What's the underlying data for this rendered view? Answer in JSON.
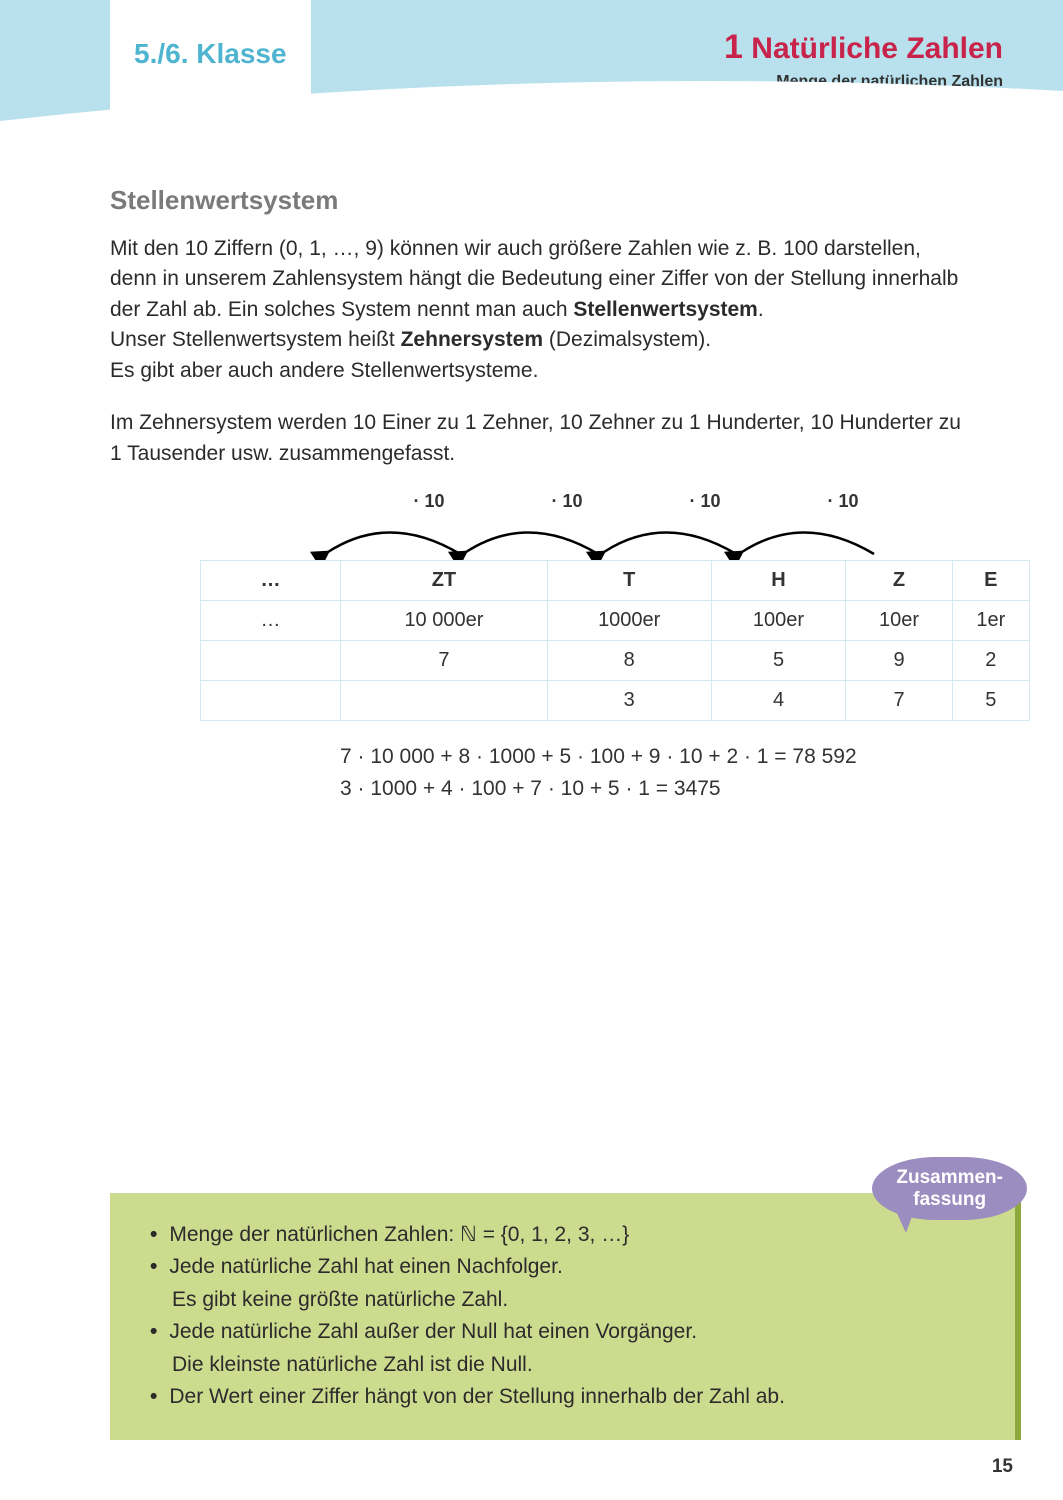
{
  "header": {
    "grade": "5./6. Klasse",
    "chapter_num": "1",
    "chapter_title": "Natürliche Zahlen",
    "chapter_sub": "Menge der natürlichen Zahlen",
    "bg_color": "#b9e1ed",
    "accent_color": "#c8234a",
    "grade_color": "#4fb4d0"
  },
  "section_title": "Stellenwertsystem",
  "intro_html": "Mit den 10 Ziffern (0, 1, …, 9) können wir auch größere Zahlen wie z. B. 100 darstellen, denn in unserem Zahlensystem hängt die Bedeutung einer Ziffer von der Stellung innerhalb der Zahl ab. Ein solches System nennt man auch <b>Stellenwertsystem</b>.<br>Unser Stellenwertsystem heißt <b>Zehnersystem</b> (Dezimalsystem).<br>Es gibt aber auch andere Stellenwertsysteme.",
  "para2": "Im Zehnersystem werden 10 Einer zu 1 Zehner, 10 Zehner zu 1 Hunderter, 10 Hunderter zu 1 Tausender usw. zusammengefasst.",
  "arrow_label": "· 10",
  "table": {
    "dots": "…",
    "headers": [
      "ZT",
      "T",
      "H",
      "Z",
      "E"
    ],
    "row1": [
      "10 000er",
      "1000er",
      "100er",
      "10er",
      "1er"
    ],
    "row2": [
      "7",
      "8",
      "5",
      "9",
      "2"
    ],
    "row3": [
      "",
      "3",
      "4",
      "7",
      "5"
    ],
    "border_color": "#d5eaf0"
  },
  "calc1": "7 · 10 000 + 8 · 1000 + 5 · 100 + 9 · 10 + 2 · 1 = 78 592",
  "calc2": "3 · 1000 + 4 · 100 + 7 · 10 + 5 · 1 = 3475",
  "summary": {
    "badge_line1": "Zusammen-",
    "badge_line2": "fassung",
    "badge_color": "#9b8dc0",
    "bg_color": "#cddb8f",
    "border_color": "#8fa83c",
    "items": [
      {
        "main": "Menge der natürlichen Zahlen:  ℕ = {0, 1, 2, 3, …}"
      },
      {
        "main": "Jede natürliche Zahl hat einen Nachfolger.",
        "cont": "Es gibt keine größte natürliche Zahl."
      },
      {
        "main": "Jede natürliche Zahl außer der Null hat einen Vorgänger.",
        "cont": "Die kleinste natürliche Zahl ist die Null."
      },
      {
        "main": "Der Wert einer Ziffer hängt von der Stellung innerhalb der Zahl ab."
      }
    ]
  },
  "page_number": "15"
}
